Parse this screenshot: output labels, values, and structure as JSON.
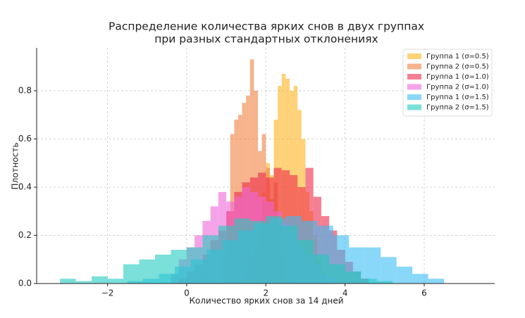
{
  "chart_data": {
    "type": "histogram",
    "title": [
      "Распределение количества ярких снов в двух группах",
      "при разных стандартных отклонениях"
    ],
    "x_label": "Количество ярких снов за 14 дней",
    "y_label": "Плотность",
    "xlim": [
      -3.79,
      7.78
    ],
    "ylim": [
      0,
      0.978
    ],
    "xticks": [
      {
        "value": -2,
        "label": "−2"
      },
      0,
      2,
      4,
      6
    ],
    "yticks": [
      {
        "value": 0,
        "label": "0.0"
      },
      0.2,
      0.4,
      0.6,
      0.8
    ],
    "grid": true,
    "legend": "upper right",
    "opacity": 0.6,
    "series": [
      {
        "name": "Группа 1 (σ=0.5)",
        "color": "#ffb41f",
        "bins": [
          1.5,
          1.6,
          1.7,
          1.8,
          1.9,
          2.0,
          2.1,
          2.2,
          2.3,
          2.4,
          2.5,
          2.6,
          2.7,
          2.8,
          2.9,
          3.0,
          3.1,
          3.2,
          3.3,
          3.4,
          3.5
        ],
        "values": [
          0.05,
          0.1,
          0.15,
          0.22,
          0.38,
          0.5,
          0.45,
          0.68,
          0.82,
          0.87,
          0.85,
          0.8,
          0.82,
          0.72,
          0.6,
          0.38,
          0.3,
          0.2,
          0.1,
          0.05
        ]
      },
      {
        "name": "Группа 2 (σ=0.5)",
        "color": "#f08040",
        "bins": [
          0.9,
          1.0,
          1.1,
          1.2,
          1.3,
          1.4,
          1.5,
          1.6,
          1.7,
          1.8,
          1.9,
          2.0,
          2.1,
          2.2,
          2.3,
          2.4,
          2.5
        ],
        "values": [
          0.12,
          0.3,
          0.62,
          0.68,
          0.7,
          0.75,
          0.78,
          0.93,
          0.8,
          0.55,
          0.62,
          0.48,
          0.35,
          0.42,
          0.25,
          0.1
        ]
      },
      {
        "name": "Группа 1 (σ=1.0)",
        "color": "#ee2a4a",
        "bins": [
          -0.2,
          0,
          0.2,
          0.4,
          0.6,
          0.8,
          1.0,
          1.2,
          1.4,
          1.6,
          1.8,
          2.0,
          2.2,
          2.4,
          2.6,
          2.8,
          3.0,
          3.2,
          3.4,
          3.6,
          3.8,
          4.0,
          4.2,
          4.4,
          4.6
        ],
        "values": [
          0.02,
          0.05,
          0.08,
          0.12,
          0.18,
          0.22,
          0.3,
          0.38,
          0.42,
          0.44,
          0.46,
          0.44,
          0.48,
          0.47,
          0.45,
          0.4,
          0.48,
          0.36,
          0.28,
          0.22,
          0.14,
          0.09,
          0.05,
          0.02
        ]
      },
      {
        "name": "Группа 2 (σ=1.0)",
        "color": "#ee66d8",
        "bins": [
          -0.4,
          -0.2,
          0,
          0.2,
          0.4,
          0.6,
          0.8,
          1.0,
          1.2,
          1.4,
          1.6,
          1.8,
          2.0,
          2.2,
          2.4,
          2.6,
          2.8,
          3.0,
          3.2,
          3.4,
          3.6,
          3.8
        ],
        "values": [
          0.04,
          0.1,
          0.15,
          0.2,
          0.26,
          0.32,
          0.38,
          0.34,
          0.36,
          0.4,
          0.38,
          0.36,
          0.34,
          0.3,
          0.25,
          0.22,
          0.16,
          0.12,
          0.08,
          0.04,
          0.02
        ]
      },
      {
        "name": "Группа 1 (σ=1.5)",
        "color": "#3bbcf5",
        "bins": [
          -1.5,
          -1.1,
          -0.7,
          -0.3,
          0.1,
          0.5,
          0.9,
          1.3,
          1.7,
          2.1,
          2.5,
          2.9,
          3.3,
          3.7,
          4.1,
          4.5,
          4.9,
          5.3,
          5.7,
          6.1,
          6.5
        ],
        "values": [
          0.01,
          0.02,
          0.04,
          0.07,
          0.1,
          0.14,
          0.18,
          0.22,
          0.25,
          0.27,
          0.28,
          0.26,
          0.24,
          0.2,
          0.15,
          0.15,
          0.11,
          0.07,
          0.04,
          0.02
        ]
      },
      {
        "name": "Группа 2 (σ=1.5)",
        "color": "#22ccc0",
        "bins": [
          -3.2,
          -2.8,
          -2.4,
          -2.0,
          -1.6,
          -1.2,
          -0.8,
          -0.4,
          0,
          0.4,
          0.8,
          1.2,
          1.6,
          2.0,
          2.4,
          2.8,
          3.2,
          3.6,
          4.0,
          4.4,
          4.8,
          5.2
        ],
        "values": [
          0.02,
          0.01,
          0.03,
          0.02,
          0.08,
          0.1,
          0.12,
          0.14,
          0.15,
          0.2,
          0.24,
          0.27,
          0.26,
          0.28,
          0.24,
          0.18,
          0.12,
          0.08,
          0.05,
          0.02,
          0.01
        ]
      }
    ]
  }
}
